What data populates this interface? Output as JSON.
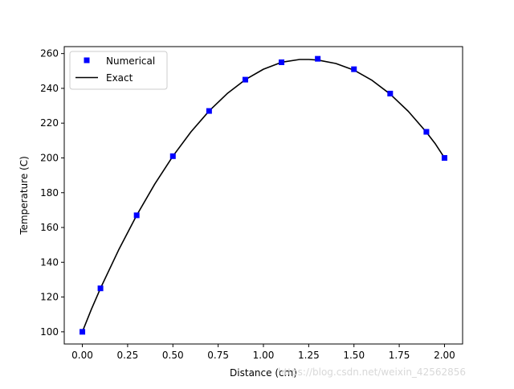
{
  "chart_data": {
    "type": "line",
    "title": "",
    "xlabel": "Distance (cm)",
    "ylabel": "Temperature (C)",
    "xlim": [
      -0.1,
      2.1
    ],
    "ylim": [
      93,
      264
    ],
    "xticks": [
      "0.00",
      "0.25",
      "0.50",
      "0.75",
      "1.00",
      "1.25",
      "1.50",
      "1.75",
      "2.00"
    ],
    "yticks": [
      "100",
      "120",
      "140",
      "160",
      "180",
      "200",
      "220",
      "240",
      "260"
    ],
    "grid": false,
    "legend_position": "top-left",
    "series": [
      {
        "name": "Numerical",
        "kind": "markers",
        "marker": "square",
        "color": "#0000ff",
        "x": [
          0.0,
          0.1,
          0.3,
          0.5,
          0.7,
          0.9,
          1.1,
          1.3,
          1.5,
          1.7,
          1.9,
          2.0
        ],
        "y": [
          100,
          125,
          167,
          201,
          227,
          245,
          255,
          257,
          251,
          237,
          215,
          200
        ]
      },
      {
        "name": "Exact",
        "kind": "line",
        "color": "#000000",
        "x": [
          0.0,
          0.05,
          0.1,
          0.2,
          0.3,
          0.4,
          0.5,
          0.6,
          0.7,
          0.8,
          0.9,
          1.0,
          1.1,
          1.2,
          1.25,
          1.3,
          1.4,
          1.5,
          1.6,
          1.7,
          1.8,
          1.9,
          1.95,
          2.0
        ],
        "y": [
          100,
          113,
          125,
          147,
          167,
          185,
          201,
          215,
          227,
          237,
          245,
          251,
          255,
          256.6,
          256.6,
          256.3,
          254.3,
          250.5,
          244.6,
          236.7,
          226.8,
          214.8,
          208.0,
          200
        ]
      }
    ]
  },
  "watermark": "https://blog.csdn.net/weixin_42562856"
}
